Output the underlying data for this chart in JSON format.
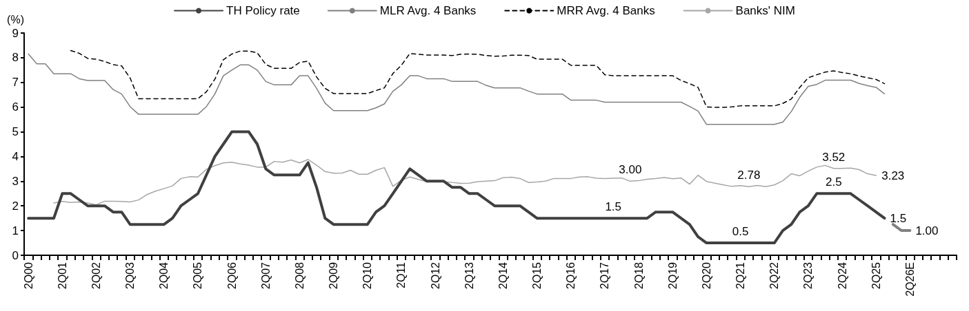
{
  "chart_data": {
    "type": "line",
    "ylabel": "(%)",
    "ylim": [
      0,
      9
    ],
    "yticks": [
      0,
      1,
      2,
      3,
      4,
      5,
      6,
      7,
      8,
      9
    ],
    "grid": false,
    "legend": "top",
    "categories": [
      "2Q00",
      null,
      null,
      null,
      "2Q01",
      null,
      null,
      null,
      "2Q02",
      null,
      null,
      null,
      "2Q03",
      null,
      null,
      null,
      "2Q04",
      null,
      null,
      null,
      "2Q05",
      null,
      null,
      null,
      "2Q06",
      null,
      null,
      null,
      "2Q07",
      null,
      null,
      null,
      "2Q08",
      null,
      null,
      null,
      "2Q09",
      null,
      null,
      null,
      "2Q10",
      null,
      null,
      null,
      "2Q11",
      null,
      null,
      null,
      "2Q12",
      null,
      null,
      null,
      "2Q13",
      null,
      null,
      null,
      "2Q14",
      null,
      null,
      null,
      "2Q15",
      null,
      null,
      null,
      "2Q16",
      null,
      null,
      null,
      "2Q17",
      null,
      null,
      null,
      "2Q18",
      null,
      null,
      null,
      "2Q19",
      null,
      null,
      null,
      "2Q20",
      null,
      null,
      null,
      "2Q21",
      null,
      null,
      null,
      "2Q22",
      null,
      null,
      null,
      "2Q23",
      null,
      null,
      null,
      "2Q24",
      null,
      null,
      null,
      "2Q25",
      null,
      null,
      null,
      "2Q26E",
      null,
      null,
      null,
      null,
      null
    ],
    "series": [
      {
        "name": "TH Policy rate",
        "color": "#404040",
        "line_style": "solid",
        "values": [
          1.5,
          1.5,
          1.5,
          1.5,
          2.5,
          2.5,
          2.25,
          2,
          2,
          2,
          1.75,
          1.75,
          1.25,
          1.25,
          1.25,
          1.25,
          1.25,
          1.5,
          2,
          2.25,
          2.5,
          3.25,
          4,
          4.5,
          5,
          5,
          5,
          4.5,
          3.5,
          3.25,
          3.25,
          3.25,
          3.25,
          3.75,
          2.75,
          1.5,
          1.25,
          1.25,
          1.25,
          1.25,
          1.25,
          1.75,
          2,
          2.5,
          3,
          3.5,
          3.25,
          3,
          3,
          3,
          2.75,
          2.75,
          2.5,
          2.5,
          2.25,
          2,
          2,
          2,
          2,
          1.75,
          1.5,
          1.5,
          1.5,
          1.5,
          1.5,
          1.5,
          1.5,
          1.5,
          1.5,
          1.5,
          1.5,
          1.5,
          1.5,
          1.5,
          1.75,
          1.75,
          1.75,
          1.5,
          1.25,
          0.75,
          0.5,
          0.5,
          0.5,
          0.5,
          0.5,
          0.5,
          0.5,
          0.5,
          0.5,
          1,
          1.25,
          1.75,
          2,
          2.5,
          2.5,
          2.5,
          2.5,
          2.5,
          2.25,
          2,
          1.75,
          1.5,
          null,
          null,
          null,
          null,
          null,
          null,
          null,
          null
        ],
        "value_labels": [
          null,
          null,
          null,
          null,
          null,
          null,
          null,
          null,
          null,
          null,
          null,
          null,
          null,
          null,
          null,
          null,
          null,
          null,
          null,
          null,
          null,
          null,
          null,
          null,
          null,
          null,
          null,
          null,
          null,
          null,
          null,
          null,
          null,
          null,
          null,
          null,
          null,
          null,
          null,
          null,
          null,
          null,
          null,
          null,
          null,
          null,
          null,
          null,
          null,
          null,
          null,
          null,
          null,
          null,
          null,
          null,
          null,
          null,
          null,
          null,
          null,
          null,
          null,
          null,
          null,
          null,
          null,
          null,
          null,
          "1.5",
          null,
          null,
          null,
          null,
          null,
          null,
          null,
          null,
          null,
          null,
          null,
          null,
          null,
          null,
          "0.5",
          null,
          null,
          null,
          null,
          null,
          null,
          null,
          null,
          null,
          null,
          "2.5",
          null,
          null,
          null,
          null,
          null,
          "1.5",
          null,
          null,
          null,
          null,
          null,
          null,
          null,
          null
        ]
      },
      {
        "name": "MLR Avg. 4 Banks",
        "color": "#808080",
        "line_style": "solid",
        "values": [
          8.15,
          7.75,
          7.75,
          7.35,
          7.35,
          7.35,
          7.15,
          7.08,
          7.08,
          7.08,
          6.71,
          6.53,
          6.02,
          5.71,
          5.71,
          5.71,
          5.71,
          5.71,
          5.71,
          5.71,
          5.71,
          6.02,
          6.53,
          7.27,
          7.5,
          7.71,
          7.71,
          7.5,
          7.04,
          6.9,
          6.9,
          6.9,
          7.27,
          7.27,
          6.76,
          6.16,
          5.86,
          5.86,
          5.86,
          5.86,
          5.86,
          5.97,
          6.13,
          6.64,
          6.9,
          7.27,
          7.27,
          7.15,
          7.15,
          7.15,
          7.04,
          7.04,
          7.04,
          7.04,
          6.88,
          6.78,
          6.78,
          6.78,
          6.78,
          6.65,
          6.53,
          6.53,
          6.53,
          6.53,
          6.28,
          6.28,
          6.28,
          6.28,
          6.2,
          6.2,
          6.2,
          6.2,
          6.2,
          6.2,
          6.2,
          6.2,
          6.2,
          6.2,
          6.03,
          5.84,
          5.3,
          5.3,
          5.3,
          5.3,
          5.3,
          5.3,
          5.3,
          5.3,
          5.3,
          5.39,
          5.82,
          6.4,
          6.84,
          6.92,
          7.09,
          7.09,
          7.09,
          7.09,
          6.96,
          6.87,
          6.8,
          6.54,
          null,
          null,
          null,
          null,
          null,
          null,
          null,
          null
        ]
      },
      {
        "name": "MRR Avg. 4 Banks",
        "color": "#000000",
        "line_style": "dashed",
        "values": [
          null,
          null,
          null,
          null,
          null,
          8.29,
          8.18,
          7.97,
          7.94,
          7.85,
          7.72,
          7.67,
          7.18,
          6.34,
          6.34,
          6.34,
          6.34,
          6.34,
          6.34,
          6.34,
          6.34,
          6.62,
          7.13,
          7.92,
          8.15,
          8.27,
          8.27,
          8.2,
          7.73,
          7.57,
          7.57,
          7.57,
          7.81,
          7.86,
          7.22,
          6.76,
          6.55,
          6.55,
          6.55,
          6.55,
          6.55,
          6.67,
          6.78,
          7.36,
          7.69,
          8.17,
          8.14,
          8.11,
          8.11,
          8.11,
          8.09,
          8.14,
          8.15,
          8.14,
          8.09,
          8.06,
          8.07,
          8.1,
          8.1,
          8.09,
          7.94,
          7.94,
          7.94,
          7.94,
          7.69,
          7.69,
          7.69,
          7.69,
          7.31,
          7.27,
          7.27,
          7.27,
          7.27,
          7.27,
          7.27,
          7.27,
          7.27,
          7.08,
          6.95,
          6.8,
          6.01,
          5.99,
          5.99,
          6.01,
          6.05,
          6.05,
          6.05,
          6.05,
          6.05,
          6.15,
          6.33,
          6.8,
          7.19,
          7.31,
          7.42,
          7.47,
          7.4,
          7.35,
          7.26,
          7.19,
          7.12,
          6.95,
          null,
          null,
          null,
          null,
          null,
          null,
          null,
          null
        ]
      },
      {
        "name": "Banks' NIM",
        "color": "#a6a6a6",
        "line_style": "solid",
        "values": [
          null,
          null,
          null,
          2.12,
          2.18,
          2.14,
          2.16,
          2.12,
          2.04,
          2.19,
          2.19,
          2.18,
          2.16,
          2.24,
          2.46,
          2.6,
          2.7,
          2.81,
          3.11,
          3.18,
          3.17,
          3.48,
          3.63,
          3.74,
          3.77,
          3.7,
          3.65,
          3.57,
          3.57,
          3.8,
          3.77,
          3.86,
          3.74,
          3.88,
          3.65,
          3.39,
          3.32,
          3.33,
          3.44,
          3.28,
          3.28,
          3.44,
          3.55,
          2.79,
          3.04,
          3.17,
          3.07,
          2.98,
          2.98,
          2.98,
          2.95,
          2.91,
          2.92,
          2.98,
          3,
          3.02,
          3.14,
          3.16,
          3.11,
          2.95,
          2.97,
          3,
          3.11,
          3.11,
          3.11,
          3.17,
          3.18,
          3.12,
          3.11,
          3.12,
          3.13,
          3,
          3.02,
          3.08,
          3.11,
          3.15,
          3.1,
          3.13,
          2.88,
          3.24,
          2.99,
          2.92,
          2.85,
          2.79,
          2.82,
          2.78,
          2.83,
          2.78,
          2.85,
          3.02,
          3.3,
          3.22,
          3.41,
          3.57,
          3.64,
          3.52,
          3.52,
          3.53,
          3.47,
          3.3,
          3.23,
          null,
          null,
          null,
          null,
          null,
          null,
          null,
          null,
          null
        ],
        "value_labels": [
          null,
          null,
          null,
          null,
          null,
          null,
          null,
          null,
          null,
          null,
          null,
          null,
          null,
          null,
          null,
          null,
          null,
          null,
          null,
          null,
          null,
          null,
          null,
          null,
          null,
          null,
          null,
          null,
          null,
          null,
          null,
          null,
          null,
          null,
          null,
          null,
          null,
          null,
          null,
          null,
          null,
          null,
          null,
          null,
          null,
          null,
          null,
          null,
          null,
          null,
          null,
          null,
          null,
          null,
          null,
          null,
          null,
          null,
          null,
          null,
          null,
          null,
          null,
          null,
          null,
          null,
          null,
          null,
          null,
          null,
          null,
          "3.00",
          null,
          null,
          null,
          null,
          null,
          null,
          null,
          null,
          null,
          null,
          null,
          null,
          null,
          "2.78",
          null,
          null,
          null,
          null,
          null,
          null,
          null,
          null,
          null,
          "3.52",
          null,
          null,
          null,
          null,
          "3.23",
          null,
          null,
          null,
          null,
          null,
          null,
          null,
          null,
          null
        ]
      },
      {
        "color": "#808080",
        "line_style": "solid",
        "values": [
          null,
          null,
          null,
          null,
          null,
          null,
          null,
          null,
          null,
          null,
          null,
          null,
          null,
          null,
          null,
          null,
          null,
          null,
          null,
          null,
          null,
          null,
          null,
          null,
          null,
          null,
          null,
          null,
          null,
          null,
          null,
          null,
          null,
          null,
          null,
          null,
          null,
          null,
          null,
          null,
          null,
          null,
          null,
          null,
          null,
          null,
          null,
          null,
          null,
          null,
          null,
          null,
          null,
          null,
          null,
          null,
          null,
          null,
          null,
          null,
          null,
          null,
          null,
          null,
          null,
          null,
          null,
          null,
          null,
          null,
          null,
          null,
          null,
          null,
          null,
          null,
          null,
          null,
          null,
          null,
          null,
          null,
          null,
          null,
          null,
          null,
          null,
          null,
          null,
          null,
          null,
          null,
          null,
          null,
          null,
          null,
          null,
          null,
          null,
          null,
          null,
          null,
          1.25,
          1,
          1,
          null,
          null,
          null,
          null,
          null
        ],
        "value_labels": [
          null,
          null,
          null,
          null,
          null,
          null,
          null,
          null,
          null,
          null,
          null,
          null,
          null,
          null,
          null,
          null,
          null,
          null,
          null,
          null,
          null,
          null,
          null,
          null,
          null,
          null,
          null,
          null,
          null,
          null,
          null,
          null,
          null,
          null,
          null,
          null,
          null,
          null,
          null,
          null,
          null,
          null,
          null,
          null,
          null,
          null,
          null,
          null,
          null,
          null,
          null,
          null,
          null,
          null,
          null,
          null,
          null,
          null,
          null,
          null,
          null,
          null,
          null,
          null,
          null,
          null,
          null,
          null,
          null,
          null,
          null,
          null,
          null,
          null,
          null,
          null,
          null,
          null,
          null,
          null,
          null,
          null,
          null,
          null,
          null,
          null,
          null,
          null,
          null,
          null,
          null,
          null,
          null,
          null,
          null,
          null,
          null,
          null,
          null,
          null,
          null,
          null,
          null,
          null,
          "1.00",
          null,
          null,
          null,
          null,
          null
        ]
      }
    ]
  }
}
